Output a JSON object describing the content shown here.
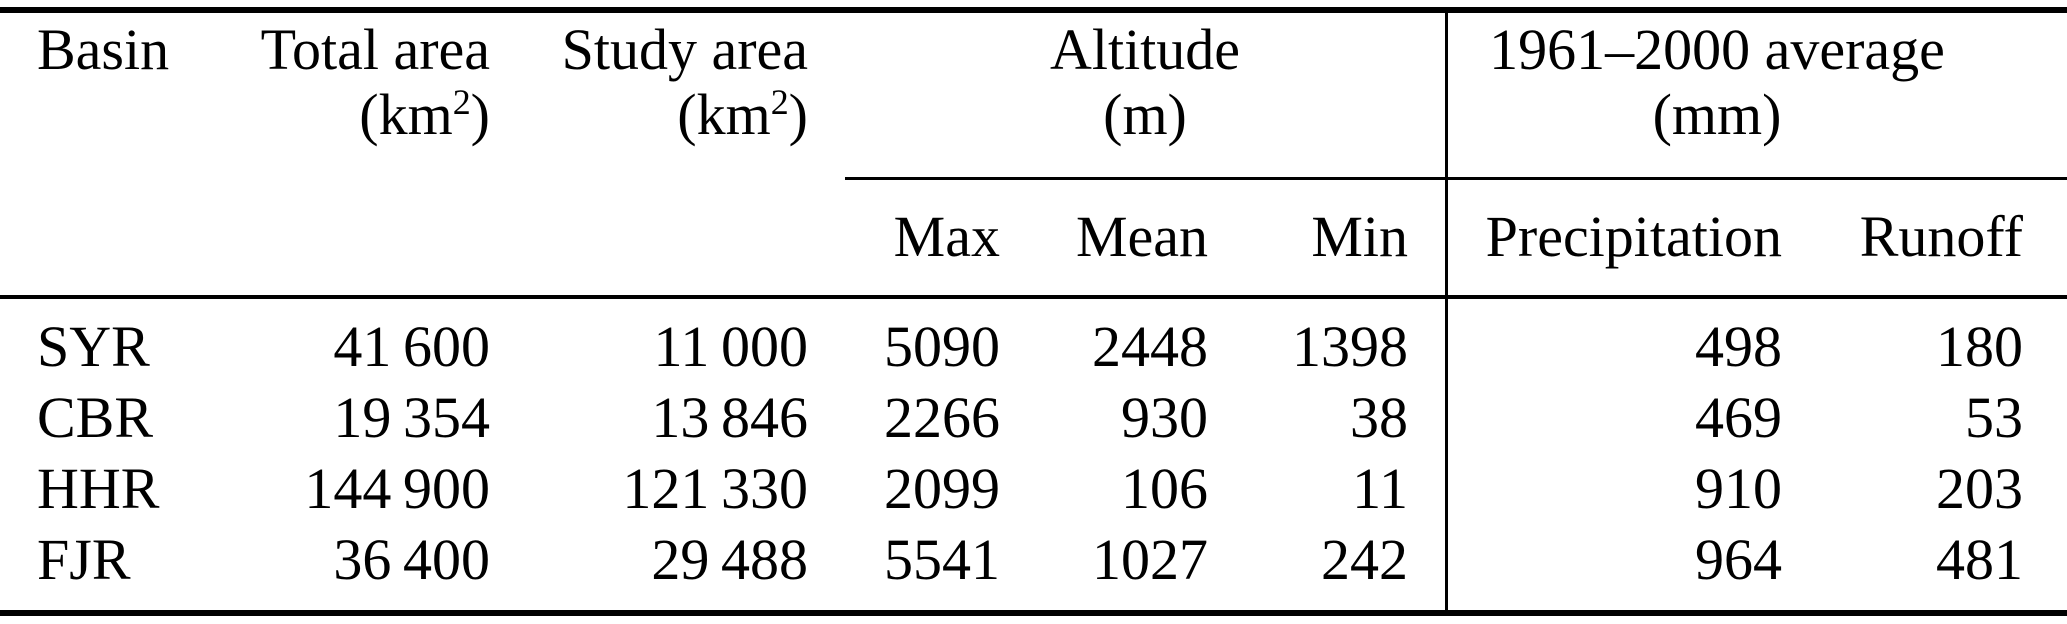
{
  "meta": {
    "background_color": "#ffffff",
    "ink_color": "#000000"
  },
  "table": {
    "header": {
      "basin": "Basin",
      "total_area": {
        "title": "Total area",
        "unit_open": "(km",
        "unit_sup": "2",
        "unit_close": ")"
      },
      "study_area": {
        "title": "Study area",
        "unit_open": "(km",
        "unit_sup": "2",
        "unit_close": ")"
      },
      "altitude_group": {
        "title": "Altitude",
        "unit": "(m)"
      },
      "average_group": {
        "title": "1961–2000 average",
        "unit": "(mm)"
      },
      "subheaders": {
        "max": "Max",
        "mean": "Mean",
        "min": "Min",
        "precipitation": "Precipitation",
        "runoff": "Runoff"
      }
    },
    "rows": [
      {
        "basin": "SYR",
        "total_area": "41 600",
        "study_area": "11 000",
        "alt_max": "5090",
        "alt_mean": "2448",
        "alt_min": "1398",
        "precipitation": "498",
        "runoff": "180"
      },
      {
        "basin": "CBR",
        "total_area": "19 354",
        "study_area": "13 846",
        "alt_max": "2266",
        "alt_mean": "930",
        "alt_min": "38",
        "precipitation": "469",
        "runoff": "53"
      },
      {
        "basin": "HHR",
        "total_area": "144 900",
        "study_area": "121 330",
        "alt_max": "2099",
        "alt_mean": "106",
        "alt_min": "11",
        "precipitation": "910",
        "runoff": "203"
      },
      {
        "basin": "FJR",
        "total_area": "36 400",
        "study_area": "29 488",
        "alt_max": "5541",
        "alt_mean": "1027",
        "alt_min": "242",
        "precipitation": "964",
        "runoff": "481"
      }
    ]
  }
}
